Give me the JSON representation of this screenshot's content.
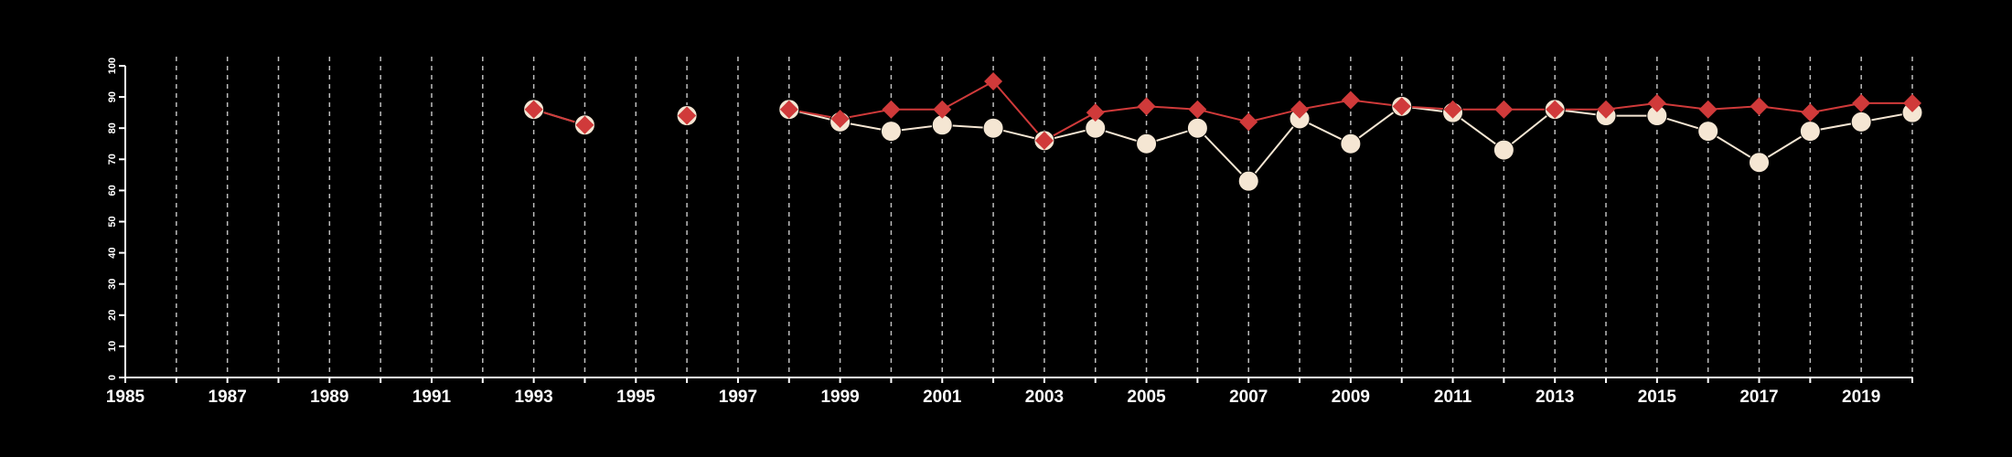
{
  "chart_data": {
    "type": "line",
    "title": "",
    "xlabel": "",
    "ylabel": "",
    "xlim": [
      1985,
      2020
    ],
    "ylim": [
      0,
      100
    ],
    "x_ticks": [
      "1985",
      "1987",
      "1989",
      "1991",
      "1993",
      "1995",
      "1997",
      "1999",
      "2001",
      "2003",
      "2005",
      "2007",
      "2009",
      "2011",
      "2013",
      "2015",
      "2017",
      "2019"
    ],
    "y_ticks": [
      "0",
      "10",
      "20",
      "30",
      "40",
      "50",
      "60",
      "70",
      "80",
      "90",
      "100"
    ],
    "grid": {
      "vertical": true,
      "horizontal": false,
      "style": "dashed"
    },
    "legend": "none",
    "colors": {
      "background": "#000000",
      "axis": "#ffffff",
      "grid": "#bdbdbd",
      "series_light": "#f5e6d3",
      "series_red": "#d03a3a"
    },
    "series": [
      {
        "marker": "circle",
        "color": "#f5e6d3",
        "points": [
          [
            1993,
            86
          ],
          [
            1994,
            81
          ],
          [
            1996,
            84
          ],
          [
            1998,
            86
          ],
          [
            1999,
            82
          ],
          [
            2000,
            79
          ],
          [
            2001,
            81
          ],
          [
            2002,
            80
          ],
          [
            2003,
            76
          ],
          [
            2004,
            80
          ],
          [
            2005,
            75
          ],
          [
            2006,
            80
          ],
          [
            2007,
            63
          ],
          [
            2008,
            83
          ],
          [
            2009,
            75
          ],
          [
            2010,
            87
          ],
          [
            2011,
            85
          ],
          [
            2012,
            73
          ],
          [
            2013,
            86
          ],
          [
            2014,
            84
          ],
          [
            2015,
            84
          ],
          [
            2016,
            79
          ],
          [
            2017,
            69
          ],
          [
            2018,
            79
          ],
          [
            2019,
            82
          ],
          [
            2020,
            85
          ]
        ]
      },
      {
        "marker": "diamond",
        "color": "#d03a3a",
        "points": [
          [
            1993,
            86
          ],
          [
            1994,
            81
          ],
          [
            1996,
            84
          ],
          [
            1998,
            86
          ],
          [
            1999,
            83
          ],
          [
            2000,
            86
          ],
          [
            2001,
            86
          ],
          [
            2002,
            95
          ],
          [
            2003,
            76
          ],
          [
            2004,
            85
          ],
          [
            2005,
            87
          ],
          [
            2006,
            86
          ],
          [
            2007,
            82
          ],
          [
            2008,
            86
          ],
          [
            2009,
            89
          ],
          [
            2010,
            87
          ],
          [
            2011,
            86
          ],
          [
            2012,
            86
          ],
          [
            2013,
            86
          ],
          [
            2014,
            86
          ],
          [
            2015,
            88
          ],
          [
            2016,
            86
          ],
          [
            2017,
            87
          ],
          [
            2018,
            85
          ],
          [
            2019,
            88
          ],
          [
            2020,
            88
          ]
        ]
      }
    ]
  }
}
